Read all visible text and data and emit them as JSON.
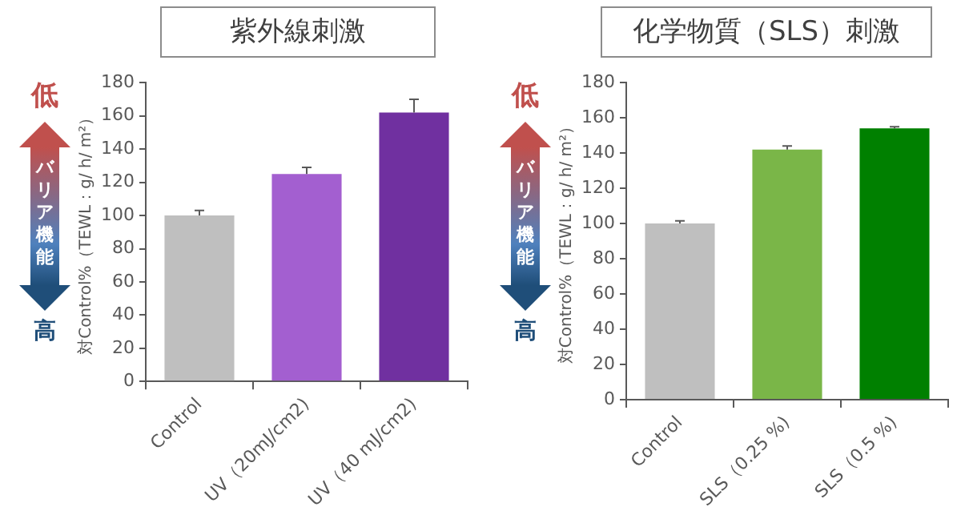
{
  "chart_data": [
    {
      "type": "bar",
      "title": "紫外線刺激",
      "ylabel": "対Control%（TEWL：g/ h/ m²）",
      "categories": [
        "Control",
        "UV（20mJ/cm2)",
        "UV（40 mJ/cm2)"
      ],
      "values": [
        100,
        125,
        162
      ],
      "colors": [
        "#bfbfbf",
        "#a35fd0",
        "#7030a0"
      ],
      "errors": [
        [
          100,
          103
        ],
        [
          125,
          129
        ],
        [
          162,
          170
        ]
      ],
      "ylim": [
        0,
        180
      ],
      "yticks": [
        0,
        20,
        40,
        60,
        80,
        100,
        120,
        140,
        160,
        180
      ],
      "grid": false,
      "annotations": [
        "低",
        "バリア機能",
        "高"
      ]
    },
    {
      "type": "bar",
      "title": "化学物質（SLS）刺激",
      "ylabel": "対Control%（TEWL：g/ h/ m²）",
      "categories": [
        "Control",
        "SLS（0.25 %)",
        "SLS（0.5 %)"
      ],
      "values": [
        100,
        142,
        154
      ],
      "colors": [
        "#bfbfbf",
        "#7ab648",
        "#008000"
      ],
      "errors": [
        [
          100,
          101.5
        ],
        [
          142,
          144
        ],
        [
          154,
          155
        ]
      ],
      "ylim": [
        0,
        180
      ],
      "yticks": [
        0,
        20,
        40,
        60,
        80,
        100,
        120,
        140,
        160,
        180
      ],
      "grid": false,
      "annotations": [
        "低",
        "バリア機能",
        "高"
      ]
    }
  ]
}
